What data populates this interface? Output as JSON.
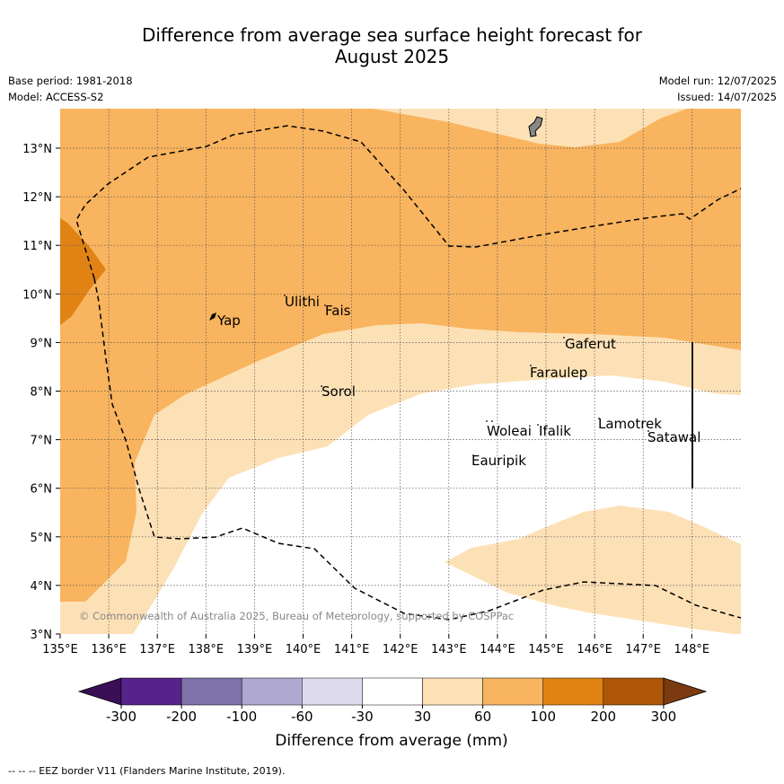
{
  "header": {
    "title_line1": "Difference from average sea surface height forecast for",
    "title_line2": "August 2025",
    "base_period": "Base period: 1981-2018",
    "model": "Model: ACCESS-S2",
    "model_run": "Model run: 12/07/2025",
    "issued": "Issued: 14/07/2025"
  },
  "map": {
    "x_ticks": [
      "135°E",
      "136°E",
      "137°E",
      "138°E",
      "139°E",
      "140°E",
      "141°E",
      "142°E",
      "143°E",
      "144°E",
      "145°E",
      "146°E",
      "147°E",
      "148°E"
    ],
    "y_ticks": [
      "3°N",
      "4°N",
      "5°N",
      "6°N",
      "7°N",
      "8°N",
      "9°N",
      "10°N",
      "11°N",
      "12°N",
      "13°N"
    ],
    "places": [
      {
        "name": "Yap"
      },
      {
        "name": "Ulithi"
      },
      {
        "name": "Fais"
      },
      {
        "name": "Sorol"
      },
      {
        "name": "Gaferut"
      },
      {
        "name": "Faraulep"
      },
      {
        "name": "Woleai"
      },
      {
        "name": "Ifalik"
      },
      {
        "name": "Lamotrek"
      },
      {
        "name": "Satawal"
      },
      {
        "name": "Eauripik"
      }
    ],
    "copyright": "© Commonwealth of Australia 2025, Bureau of Meteorology, supported by COSPPac"
  },
  "legend": {
    "ticks": [
      "-300",
      "-200",
      "-100",
      "-60",
      "-30",
      "30",
      "60",
      "100",
      "200",
      "300"
    ],
    "colors": [
      "#3a0f56",
      "#55238a",
      "#7f71a9",
      "#afa8d0",
      "#dcdaec",
      "#ffffff",
      "#fde1b6",
      "#f9b45f",
      "#e08314",
      "#ae5607",
      "#7b3a10"
    ],
    "label": "Difference from average (mm)"
  },
  "footer": "--  --  -- EEZ border V11 (Flanders Marine Institute, 2019)."
}
